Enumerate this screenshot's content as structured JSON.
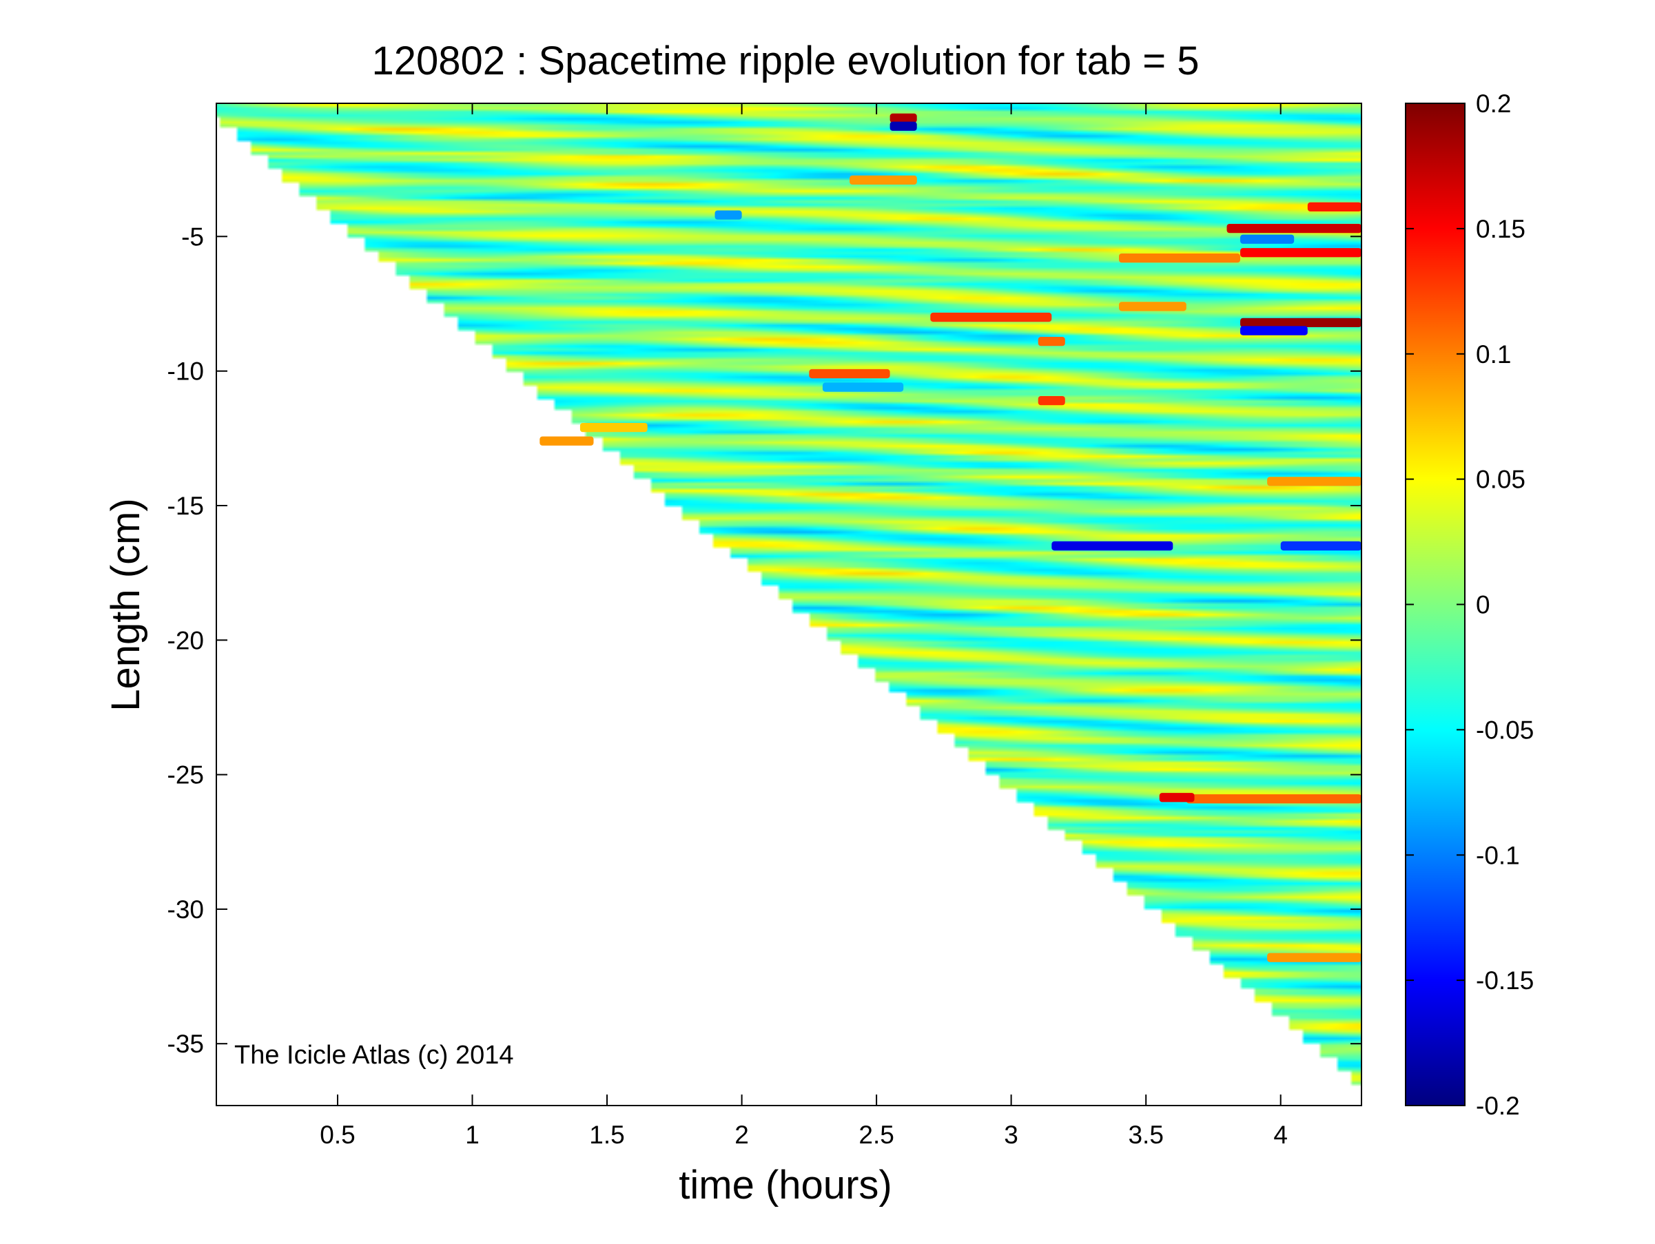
{
  "chart_data": {
    "type": "heatmap",
    "title": "120802 : Spacetime ripple evolution for tab = 5",
    "xlabel": "time (hours)",
    "ylabel": "Length (cm)",
    "xlim": [
      0.05,
      4.3
    ],
    "ylim": [
      -37.3,
      -0.05
    ],
    "xticks": [
      0.5,
      1,
      1.5,
      2,
      2.5,
      3,
      3.5,
      4
    ],
    "xtick_labels": [
      "0.5",
      "1",
      "1.5",
      "2",
      "2.5",
      "3",
      "3.5",
      "4"
    ],
    "yticks": [
      -5,
      -10,
      -15,
      -20,
      -25,
      -30,
      -35
    ],
    "ytick_labels": [
      "-5",
      "-10",
      "-15",
      "-20",
      "-25",
      "-30",
      "-35"
    ],
    "colormap": "jet",
    "clim": [
      -0.2,
      0.2
    ],
    "colorbar_ticks": [
      0.2,
      0.15,
      0.1,
      0.05,
      0,
      -0.05,
      -0.1,
      -0.15,
      -0.2
    ],
    "colorbar_labels": [
      "0.2",
      "0.15",
      "0.1",
      "0.05",
      "0",
      "-0.05",
      "-0.1",
      "-0.15",
      "-0.2"
    ],
    "grid": false,
    "annotation": "The Icicle Atlas (c) 2014",
    "data_boundary": {
      "description": "icicle length grows over time; cells below the tip are empty",
      "points": [
        [
          0.05,
          -0.9
        ],
        [
          4.3,
          -36.8
        ]
      ]
    },
    "ripple_bands": {
      "spacing_cm": 0.95,
      "amplitude": 0.04,
      "drift_cm_per_hour": 0.3
    },
    "features": [
      {
        "t0": 2.55,
        "t1": 2.65,
        "y": -0.6,
        "value": 0.18
      },
      {
        "t0": 2.55,
        "t1": 2.65,
        "y": -0.9,
        "value": -0.18
      },
      {
        "t0": 2.7,
        "t1": 3.15,
        "y": -8.0,
        "value": 0.13
      },
      {
        "t0": 2.25,
        "t1": 2.55,
        "y": -10.1,
        "value": 0.12
      },
      {
        "t0": 3.1,
        "t1": 3.2,
        "y": -11.1,
        "value": 0.13
      },
      {
        "t0": 3.1,
        "t1": 3.2,
        "y": -8.9,
        "value": 0.11
      },
      {
        "t0": 3.85,
        "t1": 4.3,
        "y": -8.2,
        "value": 0.19
      },
      {
        "t0": 3.85,
        "t1": 4.1,
        "y": -8.5,
        "value": -0.15
      },
      {
        "t0": 3.8,
        "t1": 4.3,
        "y": -4.7,
        "value": 0.17
      },
      {
        "t0": 3.85,
        "t1": 4.05,
        "y": -5.1,
        "value": -0.1
      },
      {
        "t0": 3.85,
        "t1": 4.3,
        "y": -5.6,
        "value": 0.15
      },
      {
        "t0": 3.4,
        "t1": 3.85,
        "y": -5.8,
        "value": 0.1
      },
      {
        "t0": 4.1,
        "t1": 4.3,
        "y": -3.9,
        "value": 0.14
      },
      {
        "t0": 3.4,
        "t1": 3.65,
        "y": -7.6,
        "value": 0.09
      },
      {
        "t0": 3.65,
        "t1": 4.3,
        "y": -25.9,
        "value": 0.11
      },
      {
        "t0": 3.55,
        "t1": 3.68,
        "y": -25.85,
        "value": 0.16
      },
      {
        "t0": 1.25,
        "t1": 1.45,
        "y": -12.6,
        "value": 0.09
      },
      {
        "t0": 2.4,
        "t1": 2.65,
        "y": -2.9,
        "value": 0.09
      },
      {
        "t0": 1.9,
        "t1": 2.0,
        "y": -4.2,
        "value": -0.09
      },
      {
        "t0": 2.3,
        "t1": 2.6,
        "y": -10.6,
        "value": -0.08
      },
      {
        "t0": 3.95,
        "t1": 4.3,
        "y": -14.1,
        "value": 0.09
      },
      {
        "t0": 3.15,
        "t1": 3.6,
        "y": -16.5,
        "value": -0.16
      },
      {
        "t0": 4.0,
        "t1": 4.3,
        "y": -16.5,
        "value": -0.13
      },
      {
        "t0": 3.95,
        "t1": 4.3,
        "y": -31.8,
        "value": 0.09
      },
      {
        "t0": 1.4,
        "t1": 1.65,
        "y": -12.1,
        "value": 0.07
      }
    ]
  }
}
